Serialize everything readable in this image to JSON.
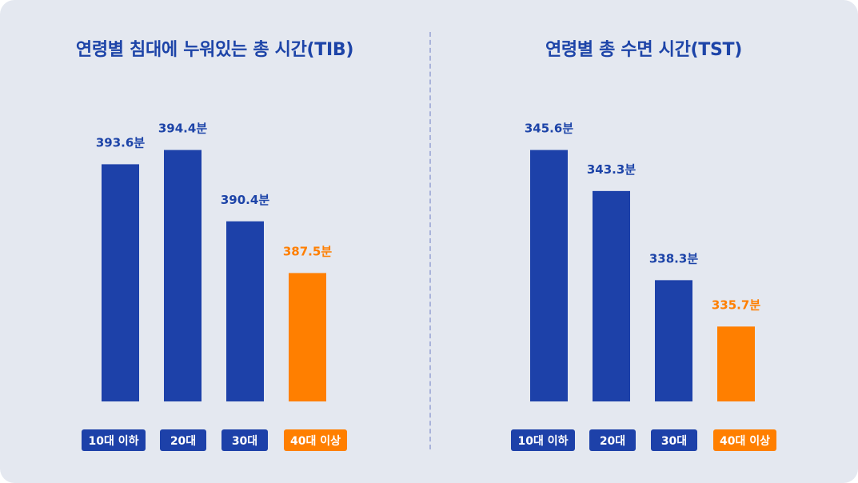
{
  "colors": {
    "primary": "#1d41a9",
    "highlight": "#ff7f00",
    "title": "#1d44a8",
    "background": "#e4e8f0",
    "divider": "#a9b3da"
  },
  "chart_data": [
    {
      "type": "bar",
      "title": "연령별 침대에 누워있는 총 시간(TIB)",
      "xlabel": "",
      "ylabel": "",
      "unit": "분",
      "categories": [
        "10대 이하",
        "20대",
        "30대",
        "40대 이상"
      ],
      "values": [
        393.6,
        394.4,
        390.4,
        387.5
      ],
      "value_labels": [
        "393.6분",
        "394.4분",
        "390.4분",
        "387.5분"
      ],
      "highlight_index": 3,
      "ylim": [
        380.3,
        395.5
      ],
      "grid": false,
      "legend": "none"
    },
    {
      "type": "bar",
      "title": "연령별 총 수면 시간(TST)",
      "xlabel": "",
      "ylabel": "",
      "unit": "분",
      "categories": [
        "10대 이하",
        "20대",
        "30대",
        "40대 이상"
      ],
      "values": [
        345.6,
        343.3,
        338.3,
        335.7
      ],
      "value_labels": [
        "345.6분",
        "343.3분",
        "338.3분",
        "335.7분"
      ],
      "highlight_index": 3,
      "ylim": [
        331.5,
        346.5
      ],
      "grid": false,
      "legend": "none"
    }
  ]
}
